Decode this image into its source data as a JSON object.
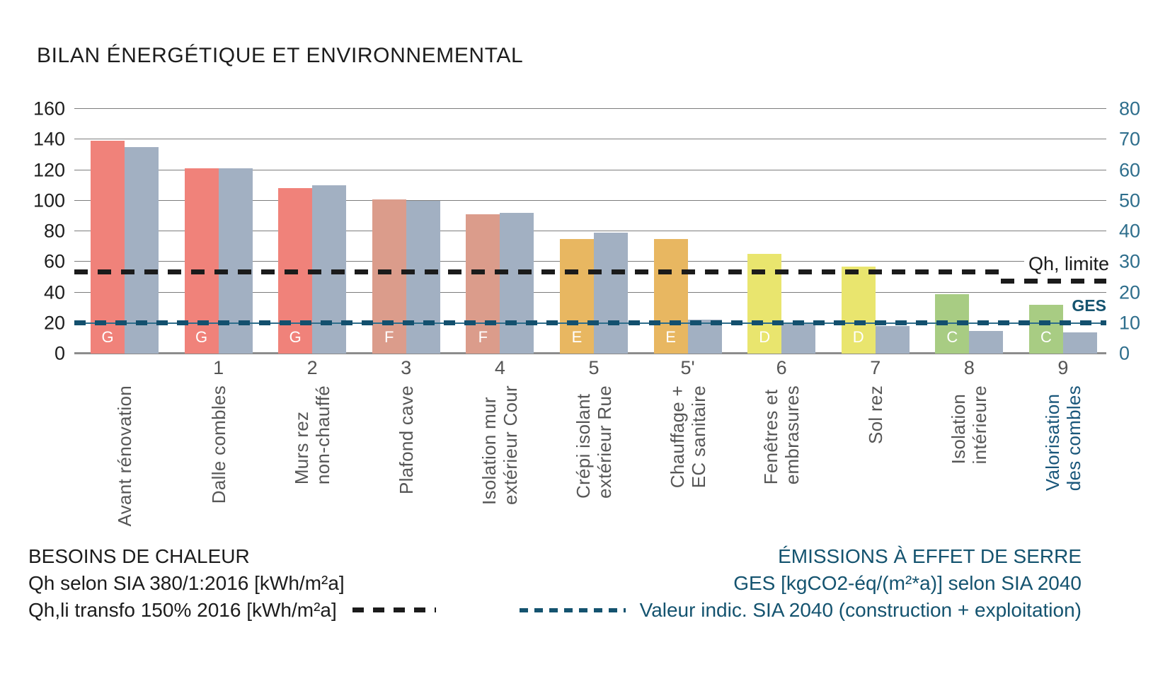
{
  "title": "BILAN ÉNERGÉTIQUE ET ENVIRONNEMENTAL",
  "chart_data": {
    "type": "bar",
    "title": "BILAN ÉNERGÉTIQUE ET ENVIRONNEMENTAL",
    "left_axis": {
      "min": 0,
      "max": 160,
      "ticks": [
        0,
        20,
        40,
        60,
        80,
        100,
        120,
        140,
        160
      ]
    },
    "right_axis": {
      "min": 0,
      "max": 80,
      "ticks": [
        0,
        10,
        20,
        30,
        40,
        50,
        60,
        70,
        80
      ]
    },
    "grid": true,
    "categories": [
      {
        "number": "",
        "label": "Avant rénovation",
        "class": "G",
        "qh": 139,
        "ges": 67.5,
        "highlight": false
      },
      {
        "number": "1",
        "label": "Dalle combles",
        "class": "G",
        "qh": 121,
        "ges": 60.5,
        "highlight": false
      },
      {
        "number": "2",
        "label": "Murs rez\nnon-chauffé",
        "class": "G",
        "qh": 108,
        "ges": 55,
        "highlight": false
      },
      {
        "number": "3",
        "label": "Plafond cave",
        "class": "F",
        "qh": 101,
        "ges": 50,
        "highlight": false
      },
      {
        "number": "4",
        "label": "Isolation mur\nextérieur Cour",
        "class": "F",
        "qh": 91,
        "ges": 46,
        "highlight": false
      },
      {
        "number": "5",
        "label": "Crépi isolant\nextérieur Rue",
        "class": "E",
        "qh": 75,
        "ges": 39.5,
        "highlight": false
      },
      {
        "number": "5'",
        "label": "Chauffage +\nEC sanitaire",
        "class": "E",
        "qh": 75,
        "ges": 11,
        "highlight": false
      },
      {
        "number": "6",
        "label": "Fenêtres et\nembrasures",
        "class": "D",
        "qh": 65,
        "ges": 10,
        "highlight": false
      },
      {
        "number": "7",
        "label": "Sol rez",
        "class": "D",
        "qh": 57,
        "ges": 9,
        "highlight": false
      },
      {
        "number": "8",
        "label": "Isolation\nintérieure",
        "class": "C",
        "qh": 39,
        "ges": 7.5,
        "highlight": false
      },
      {
        "number": "9",
        "label": "Valorisation\ndes combles",
        "class": "C",
        "qh": 32,
        "ges": 7,
        "highlight": true
      }
    ],
    "series": [
      {
        "name": "Qh selon SIA 380/1:2016 [kWh/m²a]",
        "axis": "left",
        "values": [
          139,
          121,
          108,
          101,
          91,
          75,
          75,
          65,
          57,
          39,
          32
        ]
      },
      {
        "name": "GES [kgCO2-éq/(m²*a)] selon SIA 2040",
        "axis": "right",
        "values": [
          67.5,
          60.5,
          55,
          50,
          46,
          39.5,
          11,
          10,
          9,
          7.5,
          7
        ]
      }
    ],
    "reference_lines": [
      {
        "id": "qh-limite",
        "label": "Qh, limite",
        "axis": "left",
        "value": 53,
        "end_segment_value": 47,
        "style": "black-dashed"
      },
      {
        "id": "ges-target",
        "label": "GES",
        "axis": "right",
        "value": 10,
        "style": "blue-dashed"
      }
    ]
  },
  "colors": {
    "class_G": "#f0827a",
    "class_F": "#db9c8b",
    "class_E": "#e8b761",
    "class_D": "#e9e56e",
    "class_C": "#a8cc83",
    "ges_bar": "#a2b0c2",
    "qh_line": "#1b1b1b",
    "ges_line": "#13506e",
    "right_axis_text": "#2e6e8c",
    "blue_text": "#14536f",
    "category_text": "#565656",
    "highlight_category_text": "#19567a"
  },
  "legend": {
    "left": {
      "title": "BESOINS DE CHALEUR",
      "line1": "Qh selon SIA 380/1:2016 [kWh/m²a]",
      "line2": "Qh,li transfo 150% 2016 [kWh/m²a]"
    },
    "right": {
      "title": "ÉMISSIONS À EFFET DE SERRE",
      "line1": "GES [kgCO2-éq/(m²*a)] selon SIA 2040",
      "line2": "Valeur indic. SIA 2040 (construction + exploitation)"
    }
  }
}
